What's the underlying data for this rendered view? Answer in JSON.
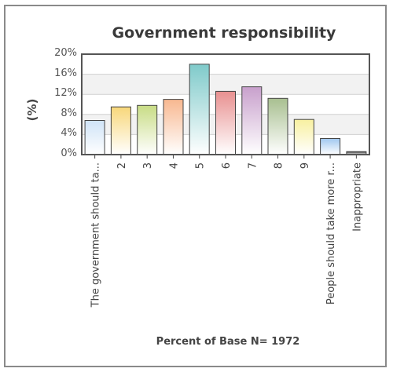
{
  "chart_data": {
    "type": "bar",
    "title": "Government responsibility",
    "ylabel": "(%)",
    "xlabel": "",
    "ylim": [
      0,
      20
    ],
    "yticks": [
      "0%",
      "4%",
      "8%",
      "12%",
      "16%",
      "20%"
    ],
    "categories": [
      "The government should ta...",
      "2",
      "3",
      "4",
      "5",
      "6",
      "7",
      "8",
      "9",
      "People should take more r...",
      "Inappropriate"
    ],
    "values": [
      6.8,
      9.5,
      9.8,
      11.0,
      18.0,
      12.6,
      13.5,
      11.2,
      7.0,
      3.2,
      0.6
    ],
    "colors": [
      "#cfe3f7",
      "#f8d77a",
      "#c8dc85",
      "#f8b890",
      "#7fcaca",
      "#e89090",
      "#c8a0cc",
      "#a8bf90",
      "#f8f0a0",
      "#a0c8f0",
      "#303030"
    ],
    "grid": true,
    "legend": "none",
    "footer": "Percent of Base N= 1972"
  }
}
